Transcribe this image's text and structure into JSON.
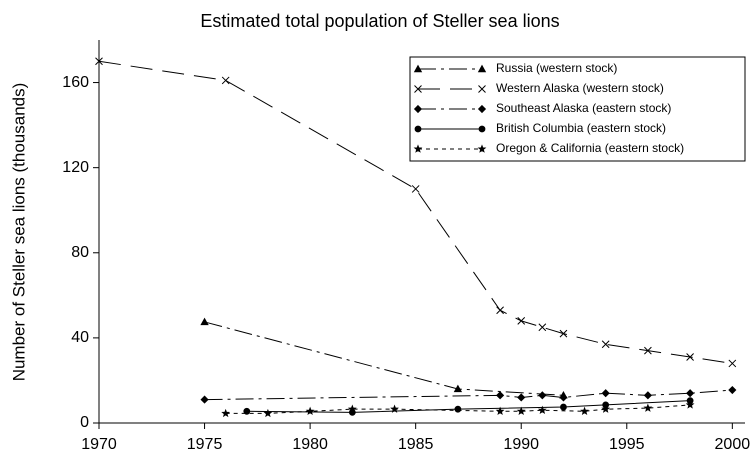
{
  "chart_data": {
    "type": "line",
    "title": "Estimated total population of Steller sea lions",
    "y_label": "Number of Steller sea lions (thousands)",
    "xlim": [
      1970,
      2000.6
    ],
    "ylim": [
      0,
      180
    ],
    "xticks": [
      1970,
      1975,
      1980,
      1985,
      1990,
      1995,
      2000
    ],
    "yticks": [
      0,
      40,
      80,
      120,
      160
    ],
    "legend": "upper right",
    "series": [
      {
        "name": "Russia (western stock)",
        "color": "#000",
        "marker": "triangle",
        "linestyle": "dashdot",
        "x": [
          1975,
          1987,
          1992
        ],
        "values": [
          47.5,
          16,
          13
        ]
      },
      {
        "name": "Western Alaska (western stock)",
        "color": "#000",
        "marker": "x",
        "linestyle": "longdash",
        "x": [
          1970,
          1976,
          1985,
          1989,
          1990,
          1991,
          1992,
          1994,
          1996,
          1998,
          2000
        ],
        "values": [
          170,
          161,
          110,
          53,
          48,
          45,
          42,
          37,
          34,
          31,
          28
        ]
      },
      {
        "name": "Southeast Alaska (eastern stock)",
        "color": "#000",
        "marker": "diamond",
        "linestyle": "dashdot",
        "x": [
          1975,
          1989,
          1990,
          1991,
          1992,
          1994,
          1996,
          1998,
          2000
        ],
        "values": [
          11,
          13,
          12,
          13,
          12,
          14,
          13,
          14,
          15.5
        ]
      },
      {
        "name": "British Columbia (eastern stock)",
        "color": "#000",
        "marker": "circle",
        "linestyle": "solid",
        "x": [
          1977,
          1982,
          1987,
          1992,
          1994,
          1998
        ],
        "values": [
          5.5,
          5,
          6.5,
          7.5,
          8.5,
          10.5
        ]
      },
      {
        "name": "Oregon & California (eastern stock)",
        "color": "#000",
        "marker": "star",
        "linestyle": "dotted",
        "x": [
          1976,
          1978,
          1980,
          1982,
          1984,
          1989,
          1990,
          1991,
          1993,
          1994,
          1996,
          1998
        ],
        "values": [
          4.5,
          4.5,
          5.5,
          6.5,
          6.5,
          5.5,
          5.5,
          6,
          5.5,
          6.5,
          7,
          8.5
        ]
      }
    ]
  }
}
